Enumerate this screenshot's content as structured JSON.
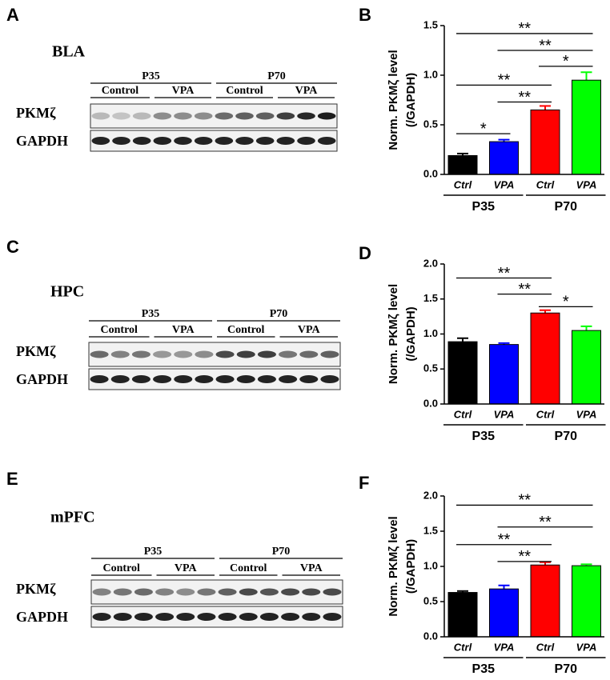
{
  "panels": [
    "A",
    "B",
    "C",
    "D",
    "E",
    "F"
  ],
  "blots": [
    {
      "region": "BLA",
      "groups": [
        "P35",
        "P70"
      ],
      "subgroups": [
        "Control",
        "VPA",
        "Control",
        "VPA"
      ],
      "rows": [
        "PKMζ",
        "GAPDH"
      ]
    },
    {
      "region": "HPC",
      "groups": [
        "P35",
        "P70"
      ],
      "subgroups": [
        "Control",
        "VPA",
        "Control",
        "VPA"
      ],
      "rows": [
        "PKMζ",
        "GAPDH"
      ]
    },
    {
      "region": "mPFC",
      "groups": [
        "P35",
        "P70"
      ],
      "subgroups": [
        "Control",
        "VPA",
        "Control",
        "VPA"
      ],
      "rows": [
        "PKMζ",
        "GAPDH"
      ]
    }
  ],
  "chart_data": [
    {
      "type": "bar",
      "ylabel": [
        "Norm. PKMζ level",
        "(/GAPDH)"
      ],
      "categories": [
        "Ctrl",
        "VPA",
        "Ctrl",
        "VPA"
      ],
      "groups": [
        "P35",
        "P70"
      ],
      "values": [
        0.19,
        0.33,
        0.65,
        0.95
      ],
      "errors": [
        0.02,
        0.02,
        0.04,
        0.08
      ],
      "colors": [
        "#000000",
        "#0000ff",
        "#ff0000",
        "#00ff00"
      ],
      "ylim": [
        0,
        1.5
      ],
      "yticks": [
        {
          "value": 0,
          "label": "0.0"
        },
        0.5,
        {
          "value": 1,
          "label": "1.0"
        },
        1.5
      ],
      "annotations": [
        "**",
        "**",
        "*",
        "**",
        "**",
        "*"
      ]
    },
    {
      "type": "bar",
      "ylabel": [
        "Norm. PKMζ level",
        "(/GAPDH)"
      ],
      "categories": [
        "Ctrl",
        "VPA",
        "Ctrl",
        "VPA"
      ],
      "groups": [
        "P35",
        "P70"
      ],
      "values": [
        0.89,
        0.85,
        1.3,
        1.05
      ],
      "errors": [
        0.05,
        0.02,
        0.04,
        0.06
      ],
      "colors": [
        "#000000",
        "#0000ff",
        "#ff0000",
        "#00ff00"
      ],
      "ylim": [
        0,
        2
      ],
      "yticks": [
        {
          "value": 0,
          "label": "0.0"
        },
        0.5,
        {
          "value": 1,
          "label": "1.0"
        },
        1.5,
        {
          "value": 2,
          "label": "2.0"
        }
      ],
      "annotations": [
        "**",
        "**",
        "*"
      ]
    },
    {
      "type": "bar",
      "ylabel": [
        "Norm. PKMζ level",
        "(/GAPDH)"
      ],
      "categories": [
        "Ctrl",
        "VPA",
        "Ctrl",
        "VPA"
      ],
      "groups": [
        "P35",
        "P70"
      ],
      "values": [
        0.63,
        0.68,
        1.02,
        1.01
      ],
      "errors": [
        0.02,
        0.05,
        0.04,
        0.02
      ],
      "colors": [
        "#000000",
        "#0000ff",
        "#ff0000",
        "#00ff00"
      ],
      "ylim": [
        0,
        2
      ],
      "yticks": [
        {
          "value": 0,
          "label": "0.0"
        },
        0.5,
        {
          "value": 1,
          "label": "1.0"
        },
        1.5,
        {
          "value": 2,
          "label": "2.0"
        }
      ],
      "annotations": [
        "**",
        "**",
        "**",
        "**"
      ]
    }
  ]
}
